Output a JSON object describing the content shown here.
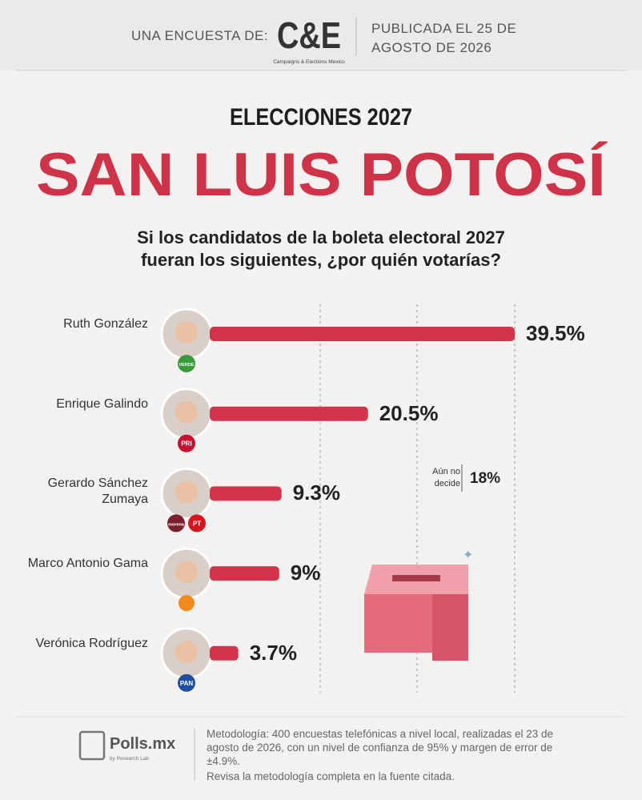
{
  "header": {
    "intro": "UNA ENCUESTA DE:",
    "brand": "C&E",
    "brand_tagline": "Campaigns & Elections Mexico",
    "published": "PUBLICADA EL 25 DE AGOSTO DE 2026"
  },
  "heading": {
    "kicker": "ELECCIONES 2027",
    "title": "SAN LUIS POTOSÍ"
  },
  "chart_data": {
    "type": "bar",
    "orientation": "horizontal",
    "title": "Si los candidatos de la boleta electoral 2027 fueran los siguientes, ¿por quién votarías?",
    "categories": [
      "Ruth González",
      "Enrique Galindo",
      "Gerardo Sánchez Zumaya",
      "Marco Antonio Gama",
      "Verónica Rodríguez"
    ],
    "parties": [
      [
        "VERDE"
      ],
      [
        "PRI"
      ],
      [
        "morena",
        "PT"
      ],
      [],
      [
        "PAN"
      ]
    ],
    "values": [
      39.5,
      20.5,
      9.3,
      9,
      3.7
    ],
    "value_labels": [
      "39.5%",
      "20.5%",
      "9.3%",
      "9%",
      "3.7%"
    ],
    "color": "#d2354b",
    "xlim": [
      0,
      40
    ],
    "grid": true,
    "annotation": {
      "text": "Aún no decide",
      "value": 18,
      "label": "18%"
    }
  },
  "footer": {
    "brand": "Polls.mx",
    "brand_tagline": "by Research Lab",
    "methodology": "Metodología: 400 encuestas telefónicas a nivel local, realizadas el 23 de agosto de 2026, con un nivel de confianza de 95% y margen de error de ±4.9%.",
    "note": "Revisa la metodología completa en la fuente citada."
  }
}
